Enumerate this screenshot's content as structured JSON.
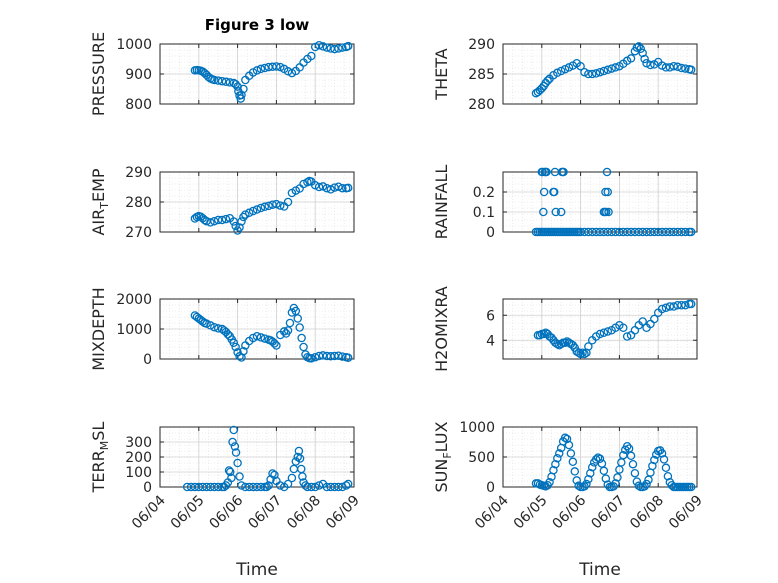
{
  "figure": {
    "title": "Figure 3 low",
    "xlabel": "Time"
  },
  "colors": {
    "series": "#0072BD",
    "axes": "#262626",
    "grid": "#d0d0d0",
    "minor_grid": "#e6e6e6",
    "background": "#ffffff"
  },
  "x_ticks": [
    "06/04",
    "06/05",
    "06/06",
    "06/07",
    "06/08",
    "06/09"
  ],
  "chart_data": [
    {
      "type": "scatter",
      "ylabel": "PRESSURE",
      "ylim": [
        800,
        1000
      ],
      "yticks": [
        800,
        900,
        1000
      ],
      "ytick_labels": [
        "800",
        "900",
        "1000"
      ],
      "x_labels_visible": false,
      "x": [
        0.9,
        0.95,
        1.0,
        1.05,
        1.1,
        1.15,
        1.2,
        1.25,
        1.3,
        1.35,
        1.4,
        1.5,
        1.6,
        1.7,
        1.8,
        1.9,
        1.95,
        2.0,
        2.02,
        2.05,
        2.08,
        2.1,
        2.15,
        2.2,
        2.3,
        2.4,
        2.5,
        2.6,
        2.7,
        2.8,
        2.9,
        3.0,
        3.1,
        3.2,
        3.3,
        3.4,
        3.5,
        3.6,
        3.7,
        3.8,
        3.9,
        4.0,
        4.1,
        4.2,
        4.3,
        4.4,
        4.5,
        4.6,
        4.7,
        4.8,
        4.85
      ],
      "y": [
        912,
        913,
        912,
        911,
        908,
        903,
        897,
        890,
        885,
        882,
        880,
        878,
        876,
        874,
        872,
        870,
        866,
        858,
        842,
        828,
        818,
        830,
        850,
        880,
        894,
        905,
        912,
        917,
        920,
        923,
        924,
        925,
        923,
        917,
        909,
        903,
        910,
        922,
        938,
        950,
        960,
        990,
        996,
        992,
        988,
        985,
        983,
        985,
        988,
        990,
        993
      ]
    },
    {
      "type": "scatter",
      "ylabel": "THETA",
      "ylim": [
        280,
        290
      ],
      "yticks": [
        280,
        285,
        290
      ],
      "ytick_labels": [
        "280",
        "285",
        "290"
      ],
      "x_labels_visible": false,
      "x": [
        0.85,
        0.9,
        0.95,
        1.0,
        1.05,
        1.1,
        1.15,
        1.2,
        1.3,
        1.4,
        1.5,
        1.6,
        1.7,
        1.8,
        1.9,
        2.0,
        2.1,
        2.2,
        2.3,
        2.4,
        2.5,
        2.6,
        2.7,
        2.8,
        2.9,
        3.0,
        3.1,
        3.2,
        3.3,
        3.4,
        3.45,
        3.5,
        3.55,
        3.6,
        3.65,
        3.7,
        3.8,
        3.9,
        4.0,
        4.1,
        4.2,
        4.3,
        4.4,
        4.5,
        4.6,
        4.7,
        4.8,
        4.85
      ],
      "y": [
        281.8,
        282,
        282.3,
        282.6,
        283,
        283.5,
        283.9,
        284.2,
        284.8,
        285.2,
        285.5,
        285.8,
        286.1,
        286.4,
        286.8,
        286.3,
        285.3,
        285,
        285,
        285.1,
        285.3,
        285.5,
        285.7,
        285.9,
        286.1,
        286.3,
        286.7,
        287.2,
        287.6,
        288.8,
        289.4,
        289.6,
        289.2,
        288.5,
        287.5,
        286.8,
        286.5,
        286.6,
        287,
        286.4,
        286.1,
        286.1,
        286.3,
        286.2,
        286,
        285.9,
        285.8,
        285.7
      ]
    },
    {
      "type": "scatter",
      "ylabel": "AIR_TEMP",
      "ylim": [
        270,
        290
      ],
      "yticks": [
        270,
        280,
        290
      ],
      "ytick_labels": [
        "270",
        "280",
        "290"
      ],
      "x_labels_visible": false,
      "x": [
        0.9,
        0.95,
        1.0,
        1.05,
        1.1,
        1.15,
        1.2,
        1.3,
        1.4,
        1.5,
        1.6,
        1.7,
        1.8,
        1.9,
        1.95,
        2.0,
        2.05,
        2.1,
        2.15,
        2.2,
        2.3,
        2.4,
        2.5,
        2.6,
        2.7,
        2.8,
        2.9,
        3.0,
        3.1,
        3.2,
        3.3,
        3.4,
        3.5,
        3.6,
        3.7,
        3.8,
        3.85,
        3.9,
        4.0,
        4.1,
        4.2,
        4.3,
        4.4,
        4.5,
        4.6,
        4.7,
        4.8,
        4.85
      ],
      "y": [
        274.5,
        275,
        275.3,
        275.1,
        274.6,
        274,
        273.6,
        273.2,
        273.6,
        274,
        274,
        274.3,
        274.6,
        273.5,
        272,
        270.5,
        271.5,
        273.5,
        275,
        275.8,
        276.4,
        277,
        277.5,
        278,
        278.4,
        278.7,
        279.1,
        279.3,
        278.8,
        278.5,
        280,
        283,
        283.8,
        284.5,
        286,
        286.6,
        287,
        286.8,
        285.6,
        285,
        285.2,
        284.6,
        284.2,
        284.8,
        285.1,
        284.6,
        284.6,
        284.7
      ]
    },
    {
      "type": "scatter",
      "ylabel": "RAINFALL",
      "ylim": [
        0,
        0.3
      ],
      "yticks": [
        0,
        0.1,
        0.2
      ],
      "ytick_labels": [
        "0",
        "0.1",
        "0.2"
      ],
      "x_labels_visible": false,
      "x": [
        0.85,
        0.9,
        0.95,
        1.0,
        1.05,
        1.1,
        1.15,
        1.2,
        1.25,
        1.3,
        1.35,
        1.4,
        1.45,
        1.5,
        1.55,
        1.6,
        1.65,
        1.7,
        1.75,
        1.8,
        1.85,
        1.9,
        1.95,
        2.0,
        2.1,
        2.2,
        2.3,
        2.4,
        2.5,
        2.6,
        2.7,
        2.8,
        2.9,
        3.0,
        3.1,
        3.2,
        3.3,
        3.4,
        3.5,
        3.6,
        3.7,
        3.8,
        3.9,
        4.0,
        4.1,
        4.2,
        4.3,
        4.4,
        4.5,
        4.6,
        4.7,
        4.8,
        4.85,
        1.0,
        1.02,
        1.04,
        1.06,
        1.08,
        1.1,
        1.12,
        1.3,
        1.32,
        1.34,
        1.36,
        1.5,
        1.52,
        1.54,
        1.56,
        2.6,
        2.62,
        2.64,
        2.66,
        2.68,
        2.7,
        2.72
      ],
      "y": [
        0,
        0,
        0,
        0,
        0,
        0,
        0,
        0,
        0,
        0,
        0,
        0,
        0,
        0,
        0,
        0,
        0,
        0,
        0,
        0,
        0,
        0,
        0,
        0,
        0,
        0,
        0,
        0,
        0,
        0,
        0,
        0,
        0,
        0,
        0,
        0,
        0,
        0,
        0,
        0,
        0,
        0,
        0,
        0,
        0,
        0,
        0,
        0,
        0,
        0,
        0,
        0,
        0,
        0.3,
        0.3,
        0.1,
        0.2,
        0.3,
        0.3,
        0.3,
        0.2,
        0.2,
        0.3,
        0.1,
        0.1,
        0.3,
        0.3,
        0.3,
        0.1,
        0.1,
        0.2,
        0.1,
        0.3,
        0.2,
        0.1
      ]
    },
    {
      "type": "scatter",
      "ylabel": "MIXDEPTH",
      "ylim": [
        0,
        2000
      ],
      "yticks": [
        0,
        1000,
        2000
      ],
      "ytick_labels": [
        "0",
        "1000",
        "2000"
      ],
      "x_labels_visible": false,
      "x": [
        0.9,
        0.95,
        1.0,
        1.05,
        1.1,
        1.15,
        1.2,
        1.3,
        1.4,
        1.5,
        1.6,
        1.65,
        1.7,
        1.75,
        1.8,
        1.85,
        1.9,
        1.95,
        2.0,
        2.05,
        2.1,
        2.15,
        2.2,
        2.3,
        2.4,
        2.5,
        2.6,
        2.7,
        2.8,
        2.85,
        2.9,
        2.95,
        3.0,
        3.1,
        3.2,
        3.25,
        3.3,
        3.35,
        3.4,
        3.45,
        3.5,
        3.55,
        3.6,
        3.65,
        3.7,
        3.75,
        3.8,
        3.85,
        3.9,
        4.0,
        4.1,
        4.2,
        4.3,
        4.4,
        4.5,
        4.6,
        4.7,
        4.8,
        4.85
      ],
      "y": [
        1450,
        1400,
        1350,
        1300,
        1250,
        1200,
        1180,
        1120,
        1060,
        1020,
        1000,
        950,
        900,
        820,
        760,
        650,
        540,
        400,
        220,
        90,
        50,
        260,
        450,
        600,
        700,
        760,
        720,
        680,
        640,
        620,
        580,
        520,
        450,
        800,
        920,
        850,
        950,
        1200,
        1550,
        1700,
        1600,
        1350,
        1050,
        700,
        400,
        150,
        60,
        30,
        20,
        60,
        100,
        120,
        100,
        90,
        100,
        110,
        80,
        60,
        40
      ]
    },
    {
      "type": "scatter",
      "ylabel": "H2OMIXRA",
      "ylim": [
        2.5,
        7.3
      ],
      "yticks": [
        4,
        6
      ],
      "ytick_labels": [
        "4",
        "6"
      ],
      "x_labels_visible": false,
      "x": [
        0.9,
        0.95,
        1.0,
        1.05,
        1.1,
        1.15,
        1.2,
        1.25,
        1.3,
        1.35,
        1.4,
        1.45,
        1.5,
        1.55,
        1.6,
        1.65,
        1.7,
        1.75,
        1.8,
        1.85,
        1.9,
        1.95,
        2.0,
        2.05,
        2.1,
        2.15,
        2.2,
        2.3,
        2.4,
        2.5,
        2.6,
        2.7,
        2.8,
        2.9,
        3.0,
        3.1,
        3.2,
        3.3,
        3.4,
        3.5,
        3.6,
        3.7,
        3.8,
        3.9,
        4.0,
        4.1,
        4.2,
        4.3,
        4.4,
        4.5,
        4.6,
        4.7,
        4.8,
        4.85
      ],
      "y": [
        4.4,
        4.4,
        4.5,
        4.5,
        4.6,
        4.5,
        4.3,
        4.2,
        4.0,
        3.8,
        3.7,
        3.6,
        3.7,
        3.8,
        3.8,
        3.9,
        3.8,
        3.7,
        3.6,
        3.4,
        3.1,
        3.0,
        2.9,
        3.0,
        2.9,
        3.0,
        3.5,
        4.0,
        4.3,
        4.5,
        4.6,
        4.7,
        4.8,
        5.0,
        5.2,
        5.0,
        4.3,
        4.4,
        4.8,
        5.2,
        5.5,
        5.0,
        5.3,
        5.7,
        6.2,
        6.5,
        6.6,
        6.7,
        6.7,
        6.8,
        6.8,
        6.8,
        6.9,
        6.9
      ]
    },
    {
      "type": "scatter",
      "ylabel": "TERR_MSL",
      "ylim": [
        0,
        400
      ],
      "yticks": [
        0,
        100,
        200,
        300
      ],
      "ytick_labels": [
        "0",
        "100",
        "200",
        "300"
      ],
      "x_labels_visible": true,
      "x": [
        0.7,
        0.8,
        0.9,
        1.0,
        1.1,
        1.2,
        1.3,
        1.4,
        1.5,
        1.6,
        1.65,
        1.7,
        1.75,
        1.78,
        1.81,
        1.84,
        1.87,
        1.9,
        1.93,
        1.96,
        2.0,
        2.05,
        2.1,
        2.2,
        2.3,
        2.4,
        2.5,
        2.6,
        2.7,
        2.75,
        2.8,
        2.85,
        2.9,
        2.95,
        3.0,
        3.1,
        3.2,
        3.3,
        3.4,
        3.45,
        3.5,
        3.55,
        3.58,
        3.61,
        3.64,
        3.67,
        3.7,
        3.75,
        3.8,
        3.9,
        4.0,
        4.1,
        4.2,
        4.3,
        4.4,
        4.5,
        4.6,
        4.7,
        4.8,
        4.85
      ],
      "y": [
        0,
        0,
        0,
        0,
        0,
        0,
        0,
        0,
        0,
        0,
        0,
        10,
        30,
        110,
        100,
        60,
        300,
        380,
        270,
        230,
        160,
        70,
        10,
        0,
        0,
        0,
        0,
        0,
        0,
        0,
        10,
        50,
        90,
        80,
        40,
        10,
        0,
        20,
        60,
        120,
        170,
        200,
        240,
        190,
        120,
        70,
        30,
        10,
        0,
        0,
        0,
        10,
        20,
        0,
        0,
        0,
        0,
        0,
        10,
        20
      ]
    },
    {
      "type": "scatter",
      "ylabel": "SUN_FLUX",
      "ylim": [
        0,
        1000
      ],
      "yticks": [
        0,
        500,
        1000
      ],
      "ytick_labels": [
        "0",
        "500",
        "1000"
      ],
      "x_labels_visible": true,
      "x": [
        0.85,
        0.9,
        0.95,
        1.0,
        1.05,
        1.1,
        1.15,
        1.2,
        1.25,
        1.3,
        1.35,
        1.4,
        1.45,
        1.5,
        1.55,
        1.6,
        1.65,
        1.7,
        1.75,
        1.8,
        1.85,
        1.9,
        1.95,
        2.0,
        2.05,
        2.1,
        2.15,
        2.2,
        2.25,
        2.3,
        2.35,
        2.4,
        2.45,
        2.5,
        2.55,
        2.6,
        2.65,
        2.7,
        2.75,
        2.8,
        2.85,
        2.9,
        2.95,
        3.0,
        3.05,
        3.1,
        3.15,
        3.2,
        3.25,
        3.3,
        3.35,
        3.4,
        3.45,
        3.5,
        3.55,
        3.6,
        3.65,
        3.7,
        3.75,
        3.8,
        3.85,
        3.9,
        3.95,
        4.0,
        4.05,
        4.1,
        4.15,
        4.2,
        4.25,
        4.3,
        4.35,
        4.4,
        4.45,
        4.5,
        4.55,
        4.6,
        4.65,
        4.7,
        4.75,
        4.8,
        4.85
      ],
      "y": [
        60,
        60,
        40,
        30,
        20,
        10,
        30,
        80,
        170,
        280,
        380,
        480,
        560,
        650,
        760,
        820,
        800,
        700,
        560,
        420,
        260,
        110,
        20,
        0,
        0,
        10,
        50,
        130,
        230,
        330,
        410,
        460,
        490,
        470,
        390,
        270,
        140,
        40,
        0,
        0,
        10,
        60,
        160,
        290,
        410,
        530,
        620,
        680,
        640,
        520,
        380,
        230,
        90,
        20,
        0,
        0,
        10,
        50,
        120,
        240,
        350,
        450,
        540,
        600,
        610,
        560,
        460,
        320,
        180,
        80,
        30,
        0,
        0,
        0,
        0,
        0,
        0,
        0,
        0,
        0,
        0
      ]
    }
  ]
}
